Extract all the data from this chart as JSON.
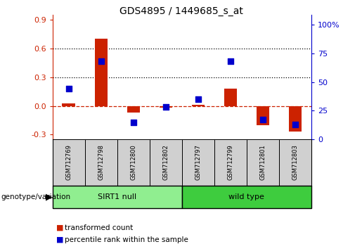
{
  "title": "GDS4895 / 1449685_s_at",
  "samples": [
    "GSM712769",
    "GSM712798",
    "GSM712800",
    "GSM712802",
    "GSM712797",
    "GSM712799",
    "GSM712801",
    "GSM712803"
  ],
  "transformed_count": [
    0.03,
    0.7,
    -0.07,
    -0.02,
    0.01,
    0.18,
    -0.2,
    -0.27
  ],
  "percentile_rank_pct": [
    44,
    68,
    15,
    28,
    35,
    68,
    17,
    13
  ],
  "groups": [
    {
      "label": "SIRT1 null",
      "start": 0,
      "end": 4,
      "color": "#90EE90"
    },
    {
      "label": "wild type",
      "start": 4,
      "end": 8,
      "color": "#3ECC3E"
    }
  ],
  "left_ylim": [
    -0.35,
    0.95
  ],
  "right_ylim": [
    0,
    100
  ],
  "yticks_left": [
    -0.3,
    0.0,
    0.3,
    0.6,
    0.9
  ],
  "yticks_right": [
    0,
    25,
    50,
    75,
    100
  ],
  "bar_color": "#CC2200",
  "dot_color": "#0000CC",
  "zero_line_color": "#CC2200",
  "legend_items": [
    "transformed count",
    "percentile rank within the sample"
  ],
  "genotype_label": "genotype/variation",
  "bar_width": 0.4,
  "dot_size": 40,
  "box_facecolor": "#D0D0D0",
  "title_fontsize": 10,
  "tick_fontsize": 8,
  "label_fontsize": 8
}
